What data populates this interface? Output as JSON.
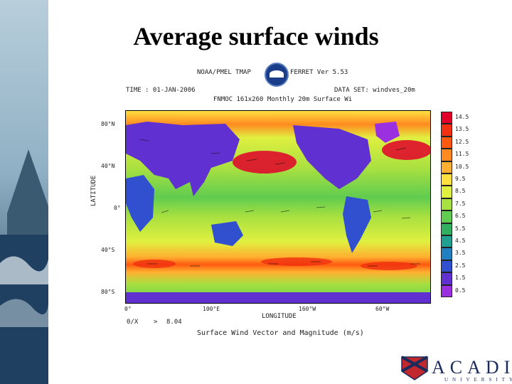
{
  "slide": {
    "title": "Average surface winds"
  },
  "figure_header": {
    "left_agency": "NOAA/PMEL TMAP",
    "right_product": "FERRET Ver 5.53",
    "time_label": "TIME : 01-JAN-2006",
    "dataset_label": "DATA SET: windves_20m",
    "plot_title": "FNMOC 161x260 Monthly 20m Surface Wi"
  },
  "axes": {
    "y_label": "LATITUDE",
    "x_label": "LONGITUDE",
    "lat_ticks": [
      "80°N",
      "40°N",
      "0°",
      "40°S",
      "80°S"
    ],
    "lon_ticks": [
      "0°",
      "100°E",
      "160°W",
      "60°W"
    ]
  },
  "legend": {
    "levels": [
      "14.5",
      "13.5",
      "12.5",
      "11.5",
      "10.5",
      "9.5",
      "8.5",
      "7.5",
      "6.5",
      "5.5",
      "4.5",
      "3.5",
      "2.5",
      "1.5",
      "0.5"
    ],
    "colors": [
      "#e0002a",
      "#f03010",
      "#ff5a10",
      "#ff8a20",
      "#ffb030",
      "#ffe040",
      "#e0f040",
      "#a8e040",
      "#60cc50",
      "#30b060",
      "#20a090",
      "#2080c0",
      "#3050d0",
      "#6030d0",
      "#9a30e0"
    ]
  },
  "footer": {
    "vector_scale_label": "0/X",
    "vector_scale_arrow": ">",
    "vector_scale_value": "8.04",
    "caption": "Surface Wind Vector and Magnitude (m/s)"
  },
  "logo": {
    "text": "ACADIA",
    "subtext": "UNIVERSITY"
  }
}
